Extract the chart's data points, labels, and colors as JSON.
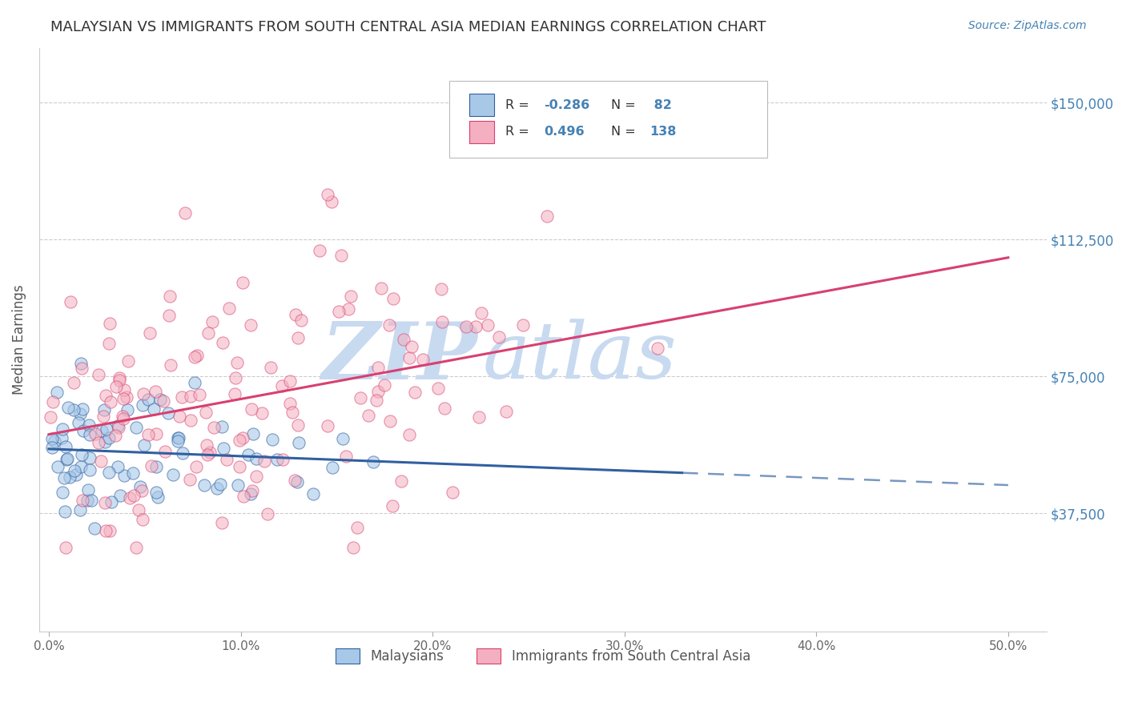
{
  "title": "MALAYSIAN VS IMMIGRANTS FROM SOUTH CENTRAL ASIA MEDIAN EARNINGS CORRELATION CHART",
  "source": "Source: ZipAtlas.com",
  "xlabel_ticks": [
    "0.0%",
    "10.0%",
    "20.0%",
    "30.0%",
    "40.0%",
    "50.0%"
  ],
  "xlabel_tick_vals": [
    0.0,
    0.1,
    0.2,
    0.3,
    0.4,
    0.5
  ],
  "ylabel": "Median Earnings",
  "ylabel_ticks": [
    "$37,500",
    "$75,000",
    "$112,500",
    "$150,000"
  ],
  "ylabel_tick_vals": [
    37500,
    75000,
    112500,
    150000
  ],
  "xlim": [
    -0.005,
    0.52
  ],
  "ylim": [
    5000,
    165000
  ],
  "legend_label_1": "Malaysians",
  "legend_label_2": "Immigrants from South Central Asia",
  "R1": -0.286,
  "N1": 82,
  "R2": 0.496,
  "N2": 138,
  "color_blue": "#a8c8e8",
  "color_pink": "#f4b0c0",
  "line_blue": "#3060a0",
  "line_pink": "#d84070",
  "background_color": "#ffffff",
  "grid_color": "#cccccc",
  "watermark_color": "#c8daf0",
  "title_color": "#333333",
  "axis_label_color": "#4682B4",
  "seed": 99
}
